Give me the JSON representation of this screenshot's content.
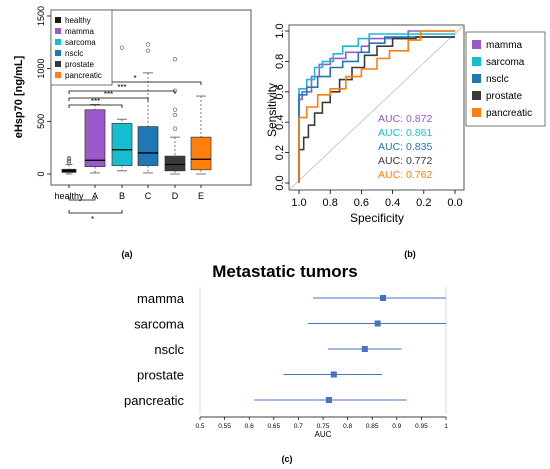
{
  "colors": {
    "healthy": "#1a1a1a",
    "mamma": "#9b59c9",
    "sarcoma": "#17becf",
    "nsclc": "#1f77b4",
    "prostate": "#3a3a3a",
    "pancreatic": "#ff7f0e",
    "forest": "#4472c4"
  },
  "chart_data": [
    {
      "panel": "(a)",
      "type": "box",
      "ylabel": "eHsp70 [ng/mL]",
      "ylim": [
        0,
        1500
      ],
      "yticks": [
        0,
        500,
        1000,
        1500
      ],
      "categories": [
        "healthy",
        "A",
        "B",
        "C",
        "D",
        "E"
      ],
      "legend": [
        "healthy",
        "mamma",
        "sarcoma",
        "nsclc",
        "prostate",
        "pancreatic"
      ],
      "boxes": [
        {
          "cat": "healthy",
          "series": "healthy",
          "q1": 15,
          "med": 30,
          "q3": 45,
          "wl": 0,
          "wh": 90,
          "outliers": [
            110,
            125,
            140,
            150
          ]
        },
        {
          "cat": "A",
          "series": "mamma",
          "q1": 70,
          "med": 130,
          "q3": 610,
          "wl": 10,
          "wh": 660,
          "outliers": []
        },
        {
          "cat": "B",
          "series": "sarcoma",
          "q1": 80,
          "med": 230,
          "q3": 480,
          "wl": 30,
          "wh": 520,
          "outliers": [
            1200
          ]
        },
        {
          "cat": "C",
          "series": "nsclc",
          "q1": 80,
          "med": 200,
          "q3": 450,
          "wl": 10,
          "wh": 960,
          "outliers": [
            1170,
            1230
          ]
        },
        {
          "cat": "D",
          "series": "prostate",
          "q1": 30,
          "med": 90,
          "q3": 170,
          "wl": 0,
          "wh": 350,
          "outliers": [
            430,
            560,
            610,
            790,
            1090
          ]
        },
        {
          "cat": "E",
          "series": "pancreatic",
          "q1": 40,
          "med": 140,
          "q3": 350,
          "wl": 0,
          "wh": 740,
          "outliers": []
        }
      ],
      "brackets": [
        {
          "to": "E",
          "label": "*"
        },
        {
          "to": "D",
          "label": "***"
        },
        {
          "to": "C",
          "label": "***"
        },
        {
          "to": "B",
          "label": "***"
        }
      ],
      "brackets_below": [
        {
          "to": "A",
          "label": ""
        },
        {
          "to": "B",
          "label": "*"
        }
      ]
    },
    {
      "panel": "(b)",
      "type": "line",
      "xlabel": "Specificity",
      "ylabel": "Sensitivity",
      "xlim": [
        1.0,
        0.0
      ],
      "ylim": [
        0.0,
        1.0
      ],
      "xticks": [
        "1.0",
        "0.8",
        "0.6",
        "0.4",
        "0.2",
        "0.0"
      ],
      "yticks": [
        "0.0",
        "0.2",
        "0.4",
        "0.6",
        "0.8",
        "1.0"
      ],
      "legend": [
        "mamma",
        "sarcoma",
        "nsclc",
        "prostate",
        "pancreatic"
      ],
      "auc_labels": [
        {
          "text": "AUC: 0.872",
          "series": "mamma"
        },
        {
          "text": "AUC: 0.861",
          "series": "sarcoma"
        },
        {
          "text": "AUC: 0.835",
          "series": "nsclc"
        },
        {
          "text": "AUC: 0.772",
          "series": "prostate"
        },
        {
          "text": "AUC: 0.762",
          "series": "pancreatic"
        }
      ],
      "series": [
        {
          "name": "mamma",
          "points": [
            [
              1,
              0
            ],
            [
              1,
              0.55
            ],
            [
              0.98,
              0.55
            ],
            [
              0.98,
              0.6
            ],
            [
              0.92,
              0.6
            ],
            [
              0.92,
              0.7
            ],
            [
              0.87,
              0.7
            ],
            [
              0.87,
              0.78
            ],
            [
              0.8,
              0.78
            ],
            [
              0.8,
              0.82
            ],
            [
              0.7,
              0.82
            ],
            [
              0.7,
              0.86
            ],
            [
              0.6,
              0.86
            ],
            [
              0.6,
              0.9
            ],
            [
              0.55,
              0.9
            ],
            [
              0.55,
              0.95
            ],
            [
              0.3,
              0.95
            ],
            [
              0.3,
              1
            ],
            [
              0,
              1
            ]
          ]
        },
        {
          "name": "sarcoma",
          "points": [
            [
              1,
              0
            ],
            [
              1,
              0.62
            ],
            [
              0.95,
              0.62
            ],
            [
              0.95,
              0.68
            ],
            [
              0.9,
              0.68
            ],
            [
              0.9,
              0.76
            ],
            [
              0.85,
              0.76
            ],
            [
              0.85,
              0.8
            ],
            [
              0.78,
              0.8
            ],
            [
              0.78,
              0.85
            ],
            [
              0.72,
              0.85
            ],
            [
              0.72,
              0.9
            ],
            [
              0.62,
              0.9
            ],
            [
              0.62,
              0.95
            ],
            [
              0.55,
              0.95
            ],
            [
              0.55,
              0.98
            ],
            [
              0,
              0.98
            ]
          ]
        },
        {
          "name": "nsclc",
          "points": [
            [
              1,
              0
            ],
            [
              1,
              0.58
            ],
            [
              0.95,
              0.58
            ],
            [
              0.95,
              0.63
            ],
            [
              0.88,
              0.63
            ],
            [
              0.88,
              0.7
            ],
            [
              0.8,
              0.7
            ],
            [
              0.8,
              0.76
            ],
            [
              0.72,
              0.76
            ],
            [
              0.72,
              0.8
            ],
            [
              0.62,
              0.8
            ],
            [
              0.62,
              0.86
            ],
            [
              0.55,
              0.86
            ],
            [
              0.55,
              0.92
            ],
            [
              0.45,
              0.92
            ],
            [
              0.45,
              0.96
            ],
            [
              0,
              0.96
            ]
          ]
        },
        {
          "name": "prostate",
          "points": [
            [
              1,
              0
            ],
            [
              1,
              0.22
            ],
            [
              0.97,
              0.22
            ],
            [
              0.97,
              0.3
            ],
            [
              0.94,
              0.3
            ],
            [
              0.94,
              0.38
            ],
            [
              0.9,
              0.38
            ],
            [
              0.9,
              0.46
            ],
            [
              0.85,
              0.46
            ],
            [
              0.85,
              0.53
            ],
            [
              0.8,
              0.53
            ],
            [
              0.8,
              0.6
            ],
            [
              0.74,
              0.6
            ],
            [
              0.74,
              0.68
            ],
            [
              0.66,
              0.68
            ],
            [
              0.66,
              0.76
            ],
            [
              0.58,
              0.76
            ],
            [
              0.58,
              0.84
            ],
            [
              0.5,
              0.84
            ],
            [
              0.5,
              0.9
            ],
            [
              0.4,
              0.9
            ],
            [
              0.4,
              0.95
            ],
            [
              0.25,
              0.95
            ],
            [
              0.25,
              0.96
            ],
            [
              0,
              0.96
            ]
          ]
        },
        {
          "name": "pancreatic",
          "points": [
            [
              1,
              0
            ],
            [
              1,
              0.43
            ],
            [
              0.95,
              0.43
            ],
            [
              0.95,
              0.5
            ],
            [
              0.88,
              0.5
            ],
            [
              0.88,
              0.58
            ],
            [
              0.8,
              0.58
            ],
            [
              0.8,
              0.62
            ],
            [
              0.7,
              0.62
            ],
            [
              0.7,
              0.7
            ],
            [
              0.6,
              0.7
            ],
            [
              0.6,
              0.75
            ],
            [
              0.5,
              0.75
            ],
            [
              0.5,
              0.82
            ],
            [
              0.42,
              0.82
            ],
            [
              0.42,
              0.87
            ],
            [
              0.3,
              0.87
            ],
            [
              0.3,
              0.94
            ],
            [
              0.22,
              0.94
            ],
            [
              0.22,
              1
            ],
            [
              0,
              1
            ]
          ]
        }
      ]
    },
    {
      "panel": "(c)",
      "type": "scatter",
      "title": "Metastatic tumors",
      "xlabel": "AUC",
      "xlim": [
        0.5,
        1.0
      ],
      "xticks": [
        "0.5",
        "0.55",
        "0.6",
        "0.65",
        "0.7",
        "0.75",
        "0.8",
        "0.85",
        "0.9",
        "0.95",
        "1"
      ],
      "rows": [
        {
          "label": "mamma",
          "auc": 0.872,
          "lo": 0.73,
          "hi": 1.0
        },
        {
          "label": "sarcoma",
          "auc": 0.861,
          "lo": 0.72,
          "hi": 1.0
        },
        {
          "label": "nsclc",
          "auc": 0.835,
          "lo": 0.76,
          "hi": 0.91
        },
        {
          "label": "prostate",
          "auc": 0.772,
          "lo": 0.67,
          "hi": 0.87
        },
        {
          "label": "pancreatic",
          "auc": 0.762,
          "lo": 0.61,
          "hi": 0.92
        }
      ]
    }
  ]
}
